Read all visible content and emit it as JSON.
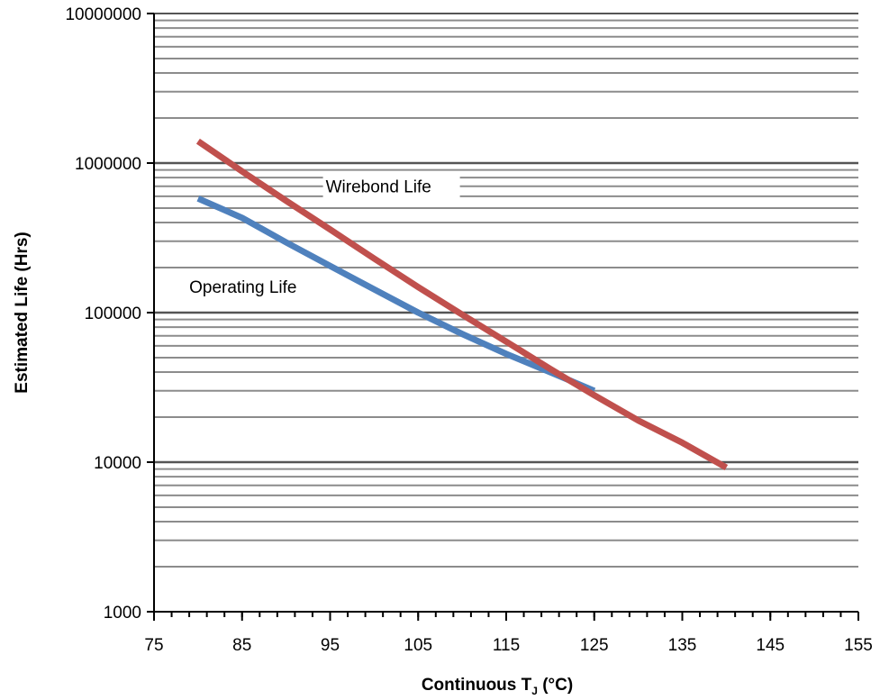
{
  "chart_data": {
    "type": "line",
    "title": "",
    "xlabel": {
      "main": "Continuous T",
      "sub": "J",
      "suffix": " (°C)"
    },
    "ylabel": "Estimated Life (Hrs)",
    "x_axis": {
      "min": 75,
      "max": 155,
      "major_ticks": [
        75,
        85,
        95,
        105,
        115,
        125,
        135,
        145,
        155
      ],
      "minor_step": 2
    },
    "y_axis": {
      "scale": "log",
      "min": 1000,
      "max": 10000000,
      "ticks": [
        1000,
        10000,
        100000,
        1000000,
        10000000
      ],
      "tick_labels": [
        "1000",
        "10000",
        "100000",
        "1000000",
        "10000000"
      ]
    },
    "grid": {
      "horizontal": true,
      "vertical": false,
      "minor_horizontal": true
    },
    "legend": "none",
    "series": [
      {
        "name": "Wirebond Life",
        "color": "#c0504d",
        "x": [
          80,
          85,
          90,
          95,
          100,
          105,
          110,
          115,
          120,
          125,
          130,
          135,
          140
        ],
        "y": [
          1400000,
          880000,
          560000,
          360000,
          230000,
          148000,
          97000,
          64000,
          42000,
          28000,
          19000,
          13500,
          9200
        ]
      },
      {
        "name": "Operating Life",
        "color": "#4f81bd",
        "x": [
          80,
          85,
          90,
          95,
          100,
          105,
          110,
          115,
          120,
          125
        ],
        "y": [
          580000,
          430000,
          295000,
          205000,
          143000,
          100000,
          72000,
          53000,
          40000,
          30000
        ]
      }
    ],
    "annotations": [
      {
        "text": "Wirebond Life",
        "series": "Wirebond Life"
      },
      {
        "text": "Operating Life",
        "series": "Operating Life"
      }
    ]
  }
}
